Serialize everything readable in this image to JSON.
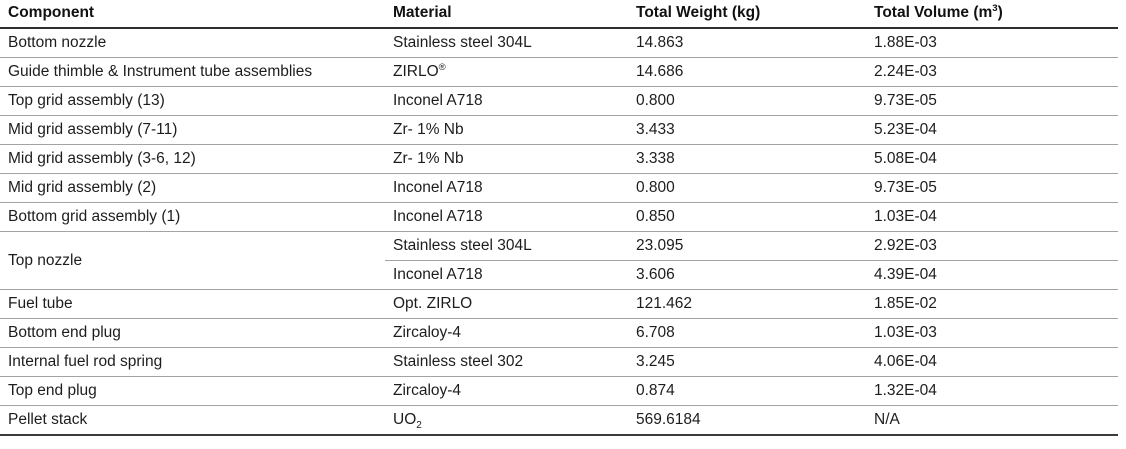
{
  "table": {
    "columns": [
      {
        "key": "component",
        "text": "Component"
      },
      {
        "key": "material",
        "text": "Material"
      },
      {
        "key": "weight",
        "text": "Total Weight (kg)"
      },
      {
        "key": "volume",
        "text": "Total Volume (m",
        "sup": "3",
        "suffix": ")"
      }
    ],
    "rows": [
      {
        "component": "Bottom nozzle",
        "material": {
          "text": "Stainless steel 304L"
        },
        "weight": "14.863",
        "volume": "1.88E-03"
      },
      {
        "component": "Guide thimble & Instrument tube assemblies",
        "material": {
          "text": "ZIRLO",
          "sup": "®"
        },
        "weight": "14.686",
        "volume": "2.24E-03"
      },
      {
        "component": "Top grid assembly (13)",
        "material": {
          "text": "Inconel A718"
        },
        "weight": "0.800",
        "volume": "9.73E-05"
      },
      {
        "component": "Mid grid assembly (7-11)",
        "material": {
          "text": "Zr- 1% Nb"
        },
        "weight": "3.433",
        "volume": "5.23E-04"
      },
      {
        "component": "Mid grid assembly (3-6, 12)",
        "material": {
          "text": "Zr- 1% Nb"
        },
        "weight": "3.338",
        "volume": "5.08E-04"
      },
      {
        "component": "Mid grid assembly (2)",
        "material": {
          "text": "Inconel A718"
        },
        "weight": "0.800",
        "volume": "9.73E-05"
      },
      {
        "component": "Bottom grid assembly (1)",
        "material": {
          "text": "Inconel A718"
        },
        "weight": "0.850",
        "volume": "1.03E-04"
      },
      {
        "component": "Top nozzle",
        "component_rowspan": 2,
        "material": {
          "text": "Stainless steel 304L"
        },
        "weight": "23.095",
        "volume": "2.92E-03"
      },
      {
        "component": null,
        "material": {
          "text": "Inconel A718"
        },
        "weight": "3.606",
        "volume": "4.39E-04"
      },
      {
        "component": "Fuel tube",
        "material": {
          "text": "Opt. ZIRLO"
        },
        "weight": "121.462",
        "volume": "1.85E-02"
      },
      {
        "component": "Bottom end plug",
        "material": {
          "text": "Zircaloy-4"
        },
        "weight": "6.708",
        "volume": "1.03E-03"
      },
      {
        "component": "Internal fuel rod spring",
        "material": {
          "text": "Stainless steel 302"
        },
        "weight": "3.245",
        "volume": "4.06E-04"
      },
      {
        "component": "Top end plug",
        "material": {
          "text": "Zircaloy-4"
        },
        "weight": "0.874",
        "volume": "1.32E-04"
      },
      {
        "component": "Pellet stack",
        "material": {
          "text": "UO",
          "sub": "2"
        },
        "weight": "569.6184",
        "volume": "N/A"
      }
    ]
  }
}
